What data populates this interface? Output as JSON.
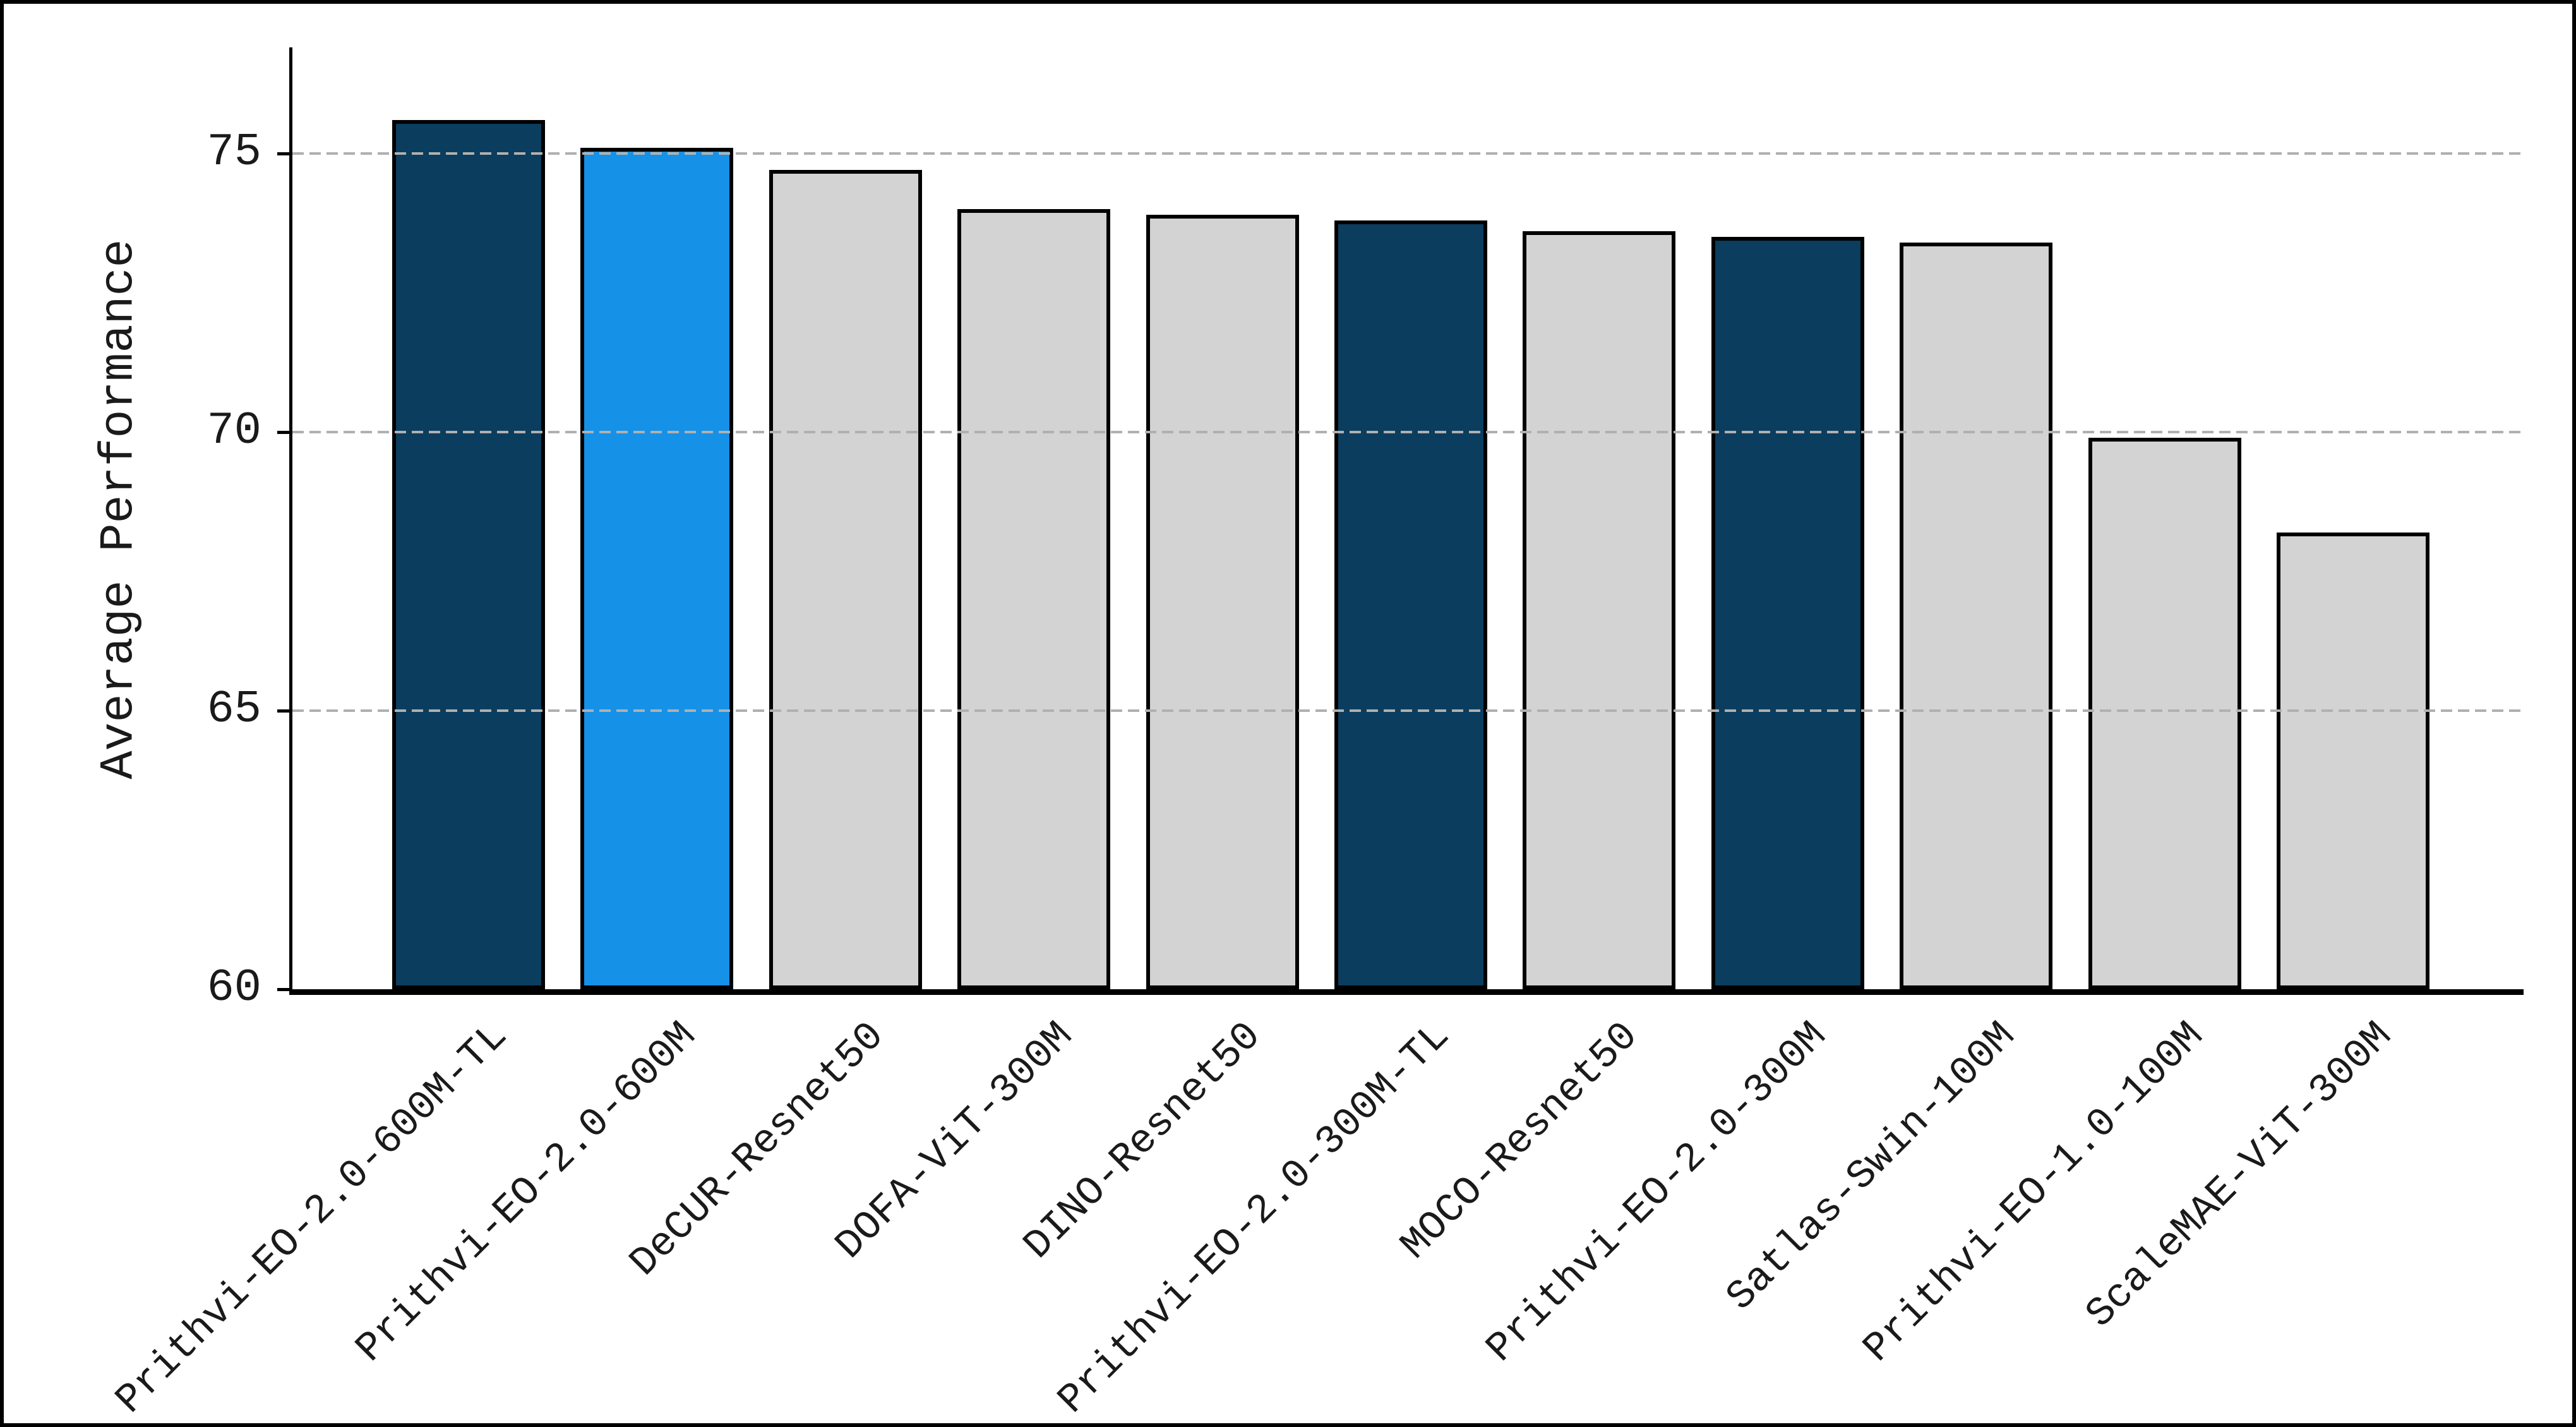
{
  "chart_data": {
    "type": "bar",
    "title": "",
    "xlabel": "",
    "ylabel": "Average Performance",
    "categories": [
      "Prithvi-EO-2.0-600M-TL",
      "Prithvi-EO-2.0-600M",
      "DeCUR-Resnet50",
      "DOFA-ViT-300M",
      "DINO-Resnet50",
      "Prithvi-EO-2.0-300M-TL",
      "MOCO-Resnet50",
      "Prithvi-EO-2.0-300M",
      "Satlas-Swin-100M",
      "Prithvi-EO-1.0-100M",
      "ScaleMAE-ViT-300M"
    ],
    "values": [
      75.6,
      75.1,
      74.7,
      74.0,
      73.9,
      73.8,
      73.6,
      73.5,
      73.4,
      69.9,
      68.2
    ],
    "bar_colors": [
      "#0b3d5f",
      "#1591e8",
      "#d3d3d3",
      "#d3d3d3",
      "#d3d3d3",
      "#0b3d5f",
      "#d3d3d3",
      "#0b3d5f",
      "#d3d3d3",
      "#d3d3d3",
      "#d3d3d3"
    ],
    "colors": {
      "highlight_dark": "#0b3d5f",
      "highlight_blue": "#1591e8",
      "default_bar": "#d3d3d3",
      "bar_edge": "#000000",
      "grid": "#b0b0b0",
      "text": "#1a1a1a"
    },
    "yticks": [
      "60",
      "65",
      "70",
      "75"
    ],
    "ytick_values": [
      60,
      65,
      70,
      75
    ],
    "gridline_values": [
      65,
      70,
      75
    ],
    "ylim": [
      60,
      76.9
    ],
    "grid": "horizontal dashed, drawn over bars",
    "legend": "none",
    "x_tick_rotation": 45
  }
}
